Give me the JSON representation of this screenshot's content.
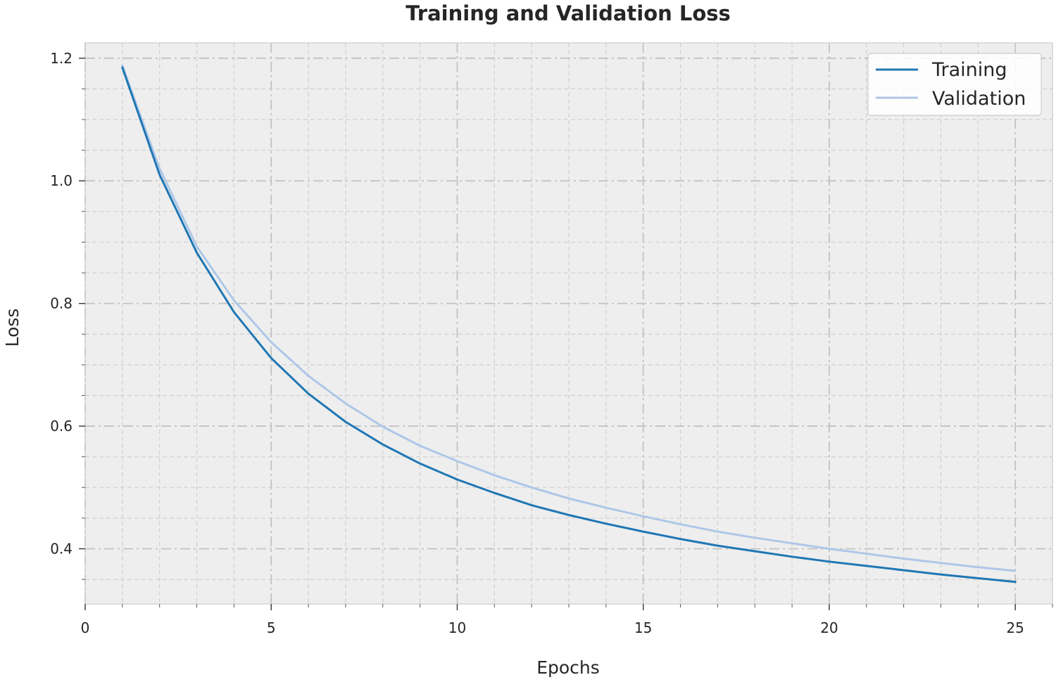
{
  "chart_data": {
    "type": "line",
    "title": "Training and Validation Loss",
    "xlabel": "Epochs",
    "ylabel": "Loss",
    "xlim": [
      0,
      26
    ],
    "ylim": [
      0.31,
      1.225
    ],
    "x_ticks": [
      0,
      5,
      10,
      15,
      20,
      25
    ],
    "x_tick_labels": [
      "0",
      "5",
      "10",
      "15",
      "20",
      "25"
    ],
    "y_ticks": [
      0.4,
      0.6,
      0.8,
      1.0,
      1.2
    ],
    "y_tick_labels": [
      "0.4",
      "0.6",
      "0.8",
      "1.0",
      "1.2"
    ],
    "x_minor_step": 1,
    "y_minor_step": 0.05,
    "grid": true,
    "legend_position": "top-right",
    "x": [
      1,
      2,
      3,
      4,
      5,
      6,
      7,
      8,
      9,
      10,
      11,
      12,
      13,
      14,
      15,
      16,
      17,
      18,
      19,
      20,
      21,
      22,
      23,
      24,
      25
    ],
    "series": [
      {
        "name": "Training",
        "color": "#1f77b4",
        "values": [
          1.185,
          1.01,
          0.883,
          0.786,
          0.711,
          0.653,
          0.607,
          0.57,
          0.539,
          0.513,
          0.491,
          0.471,
          0.455,
          0.441,
          0.428,
          0.416,
          0.405,
          0.396,
          0.387,
          0.379,
          0.372,
          0.365,
          0.358,
          0.352,
          0.346
        ]
      },
      {
        "name": "Validation",
        "color": "#aec7e8",
        "values": [
          1.188,
          1.02,
          0.893,
          0.805,
          0.737,
          0.682,
          0.637,
          0.599,
          0.568,
          0.543,
          0.52,
          0.5,
          0.482,
          0.467,
          0.453,
          0.44,
          0.428,
          0.418,
          0.409,
          0.4,
          0.392,
          0.384,
          0.377,
          0.37,
          0.364
        ]
      }
    ]
  }
}
